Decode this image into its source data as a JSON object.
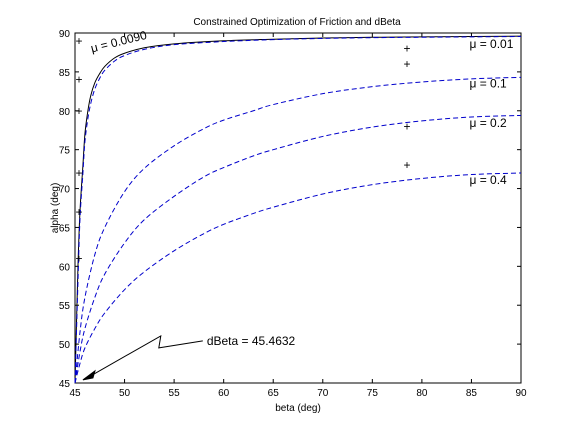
{
  "chart_data": {
    "type": "line",
    "title": "Constrained Optimization of Friction and dBeta",
    "xlabel": "beta (deg)",
    "ylabel": "alpha (deg)",
    "xlim": [
      45,
      90
    ],
    "ylim": [
      45,
      90
    ],
    "xticks": [
      45,
      50,
      55,
      60,
      65,
      70,
      75,
      80,
      85,
      90
    ],
    "yticks": [
      45,
      50,
      55,
      60,
      65,
      70,
      75,
      80,
      85,
      90
    ],
    "grid": false,
    "series": [
      {
        "name": "μ = 0.0090",
        "style": "solid",
        "color": "#000000",
        "x": [
          45.0,
          45.3,
          45.5,
          45.8,
          46.0,
          46.3,
          46.6,
          47.0,
          47.5,
          48.0,
          49.0,
          50.0,
          52.0,
          55.0,
          60.0,
          65.0,
          70.0,
          75.0,
          80.0,
          85.0,
          90.0
        ],
        "y": [
          45.0,
          60.0,
          67.0,
          73.0,
          77.0,
          80.0,
          82.0,
          83.6,
          84.8,
          85.7,
          86.8,
          87.4,
          88.1,
          88.6,
          89.0,
          89.2,
          89.35,
          89.45,
          89.5,
          89.55,
          89.6
        ]
      },
      {
        "name": "μ = 0.01",
        "style": "dashed",
        "color": "#0000cc",
        "x": [
          45.0,
          45.3,
          45.5,
          45.8,
          46.0,
          46.3,
          46.6,
          47.0,
          47.5,
          48.0,
          49.0,
          50.0,
          52.0,
          55.0,
          60.0,
          65.0,
          70.0,
          75.0,
          80.0,
          85.0,
          90.0
        ],
        "y": [
          45.0,
          58.0,
          66.0,
          72.0,
          76.0,
          79.0,
          81.0,
          82.8,
          84.2,
          85.2,
          86.4,
          87.1,
          87.9,
          88.5,
          88.9,
          89.15,
          89.3,
          89.4,
          89.45,
          89.5,
          89.55
        ]
      },
      {
        "name": "μ = 0.1",
        "style": "dashed",
        "color": "#0000cc",
        "x": [
          45.0,
          45.5,
          46.0,
          47.0,
          48.0,
          50.0,
          52.0,
          55.0,
          58.0,
          60.0,
          63.0,
          65.0,
          70.0,
          75.0,
          80.0,
          85.0,
          90.0
        ],
        "y": [
          45.0,
          51.5,
          56.0,
          61.5,
          65.0,
          69.6,
          72.6,
          75.5,
          77.7,
          78.8,
          80.0,
          80.8,
          82.2,
          83.1,
          83.7,
          84.1,
          84.3
        ]
      },
      {
        "name": "μ = 0.2",
        "style": "dashed",
        "color": "#0000cc",
        "x": [
          45.0,
          45.5,
          46.0,
          47.0,
          48.0,
          50.0,
          52.0,
          55.0,
          58.0,
          60.0,
          63.0,
          65.0,
          70.0,
          75.0,
          80.0,
          85.0,
          90.0
        ],
        "y": [
          45.0,
          49.0,
          52.0,
          56.0,
          59.0,
          63.0,
          66.0,
          69.0,
          71.5,
          72.7,
          74.2,
          75.0,
          76.7,
          77.9,
          78.7,
          79.2,
          79.4
        ]
      },
      {
        "name": "μ = 0.4",
        "style": "dashed",
        "color": "#0000cc",
        "x": [
          45.0,
          45.5,
          46.0,
          47.0,
          48.0,
          50.0,
          52.0,
          55.0,
          58.0,
          60.0,
          63.0,
          65.0,
          70.0,
          75.0,
          80.0,
          85.0,
          90.0
        ],
        "y": [
          45.0,
          47.5,
          49.5,
          52.0,
          54.0,
          57.0,
          59.3,
          62.0,
          64.2,
          65.4,
          66.8,
          67.6,
          69.3,
          70.5,
          71.3,
          71.8,
          72.0
        ]
      }
    ],
    "markers": {
      "symbol": "+",
      "points": [
        {
          "x": 45.4,
          "y": 89.0
        },
        {
          "x": 45.4,
          "y": 84.0
        },
        {
          "x": 45.4,
          "y": 80.0
        },
        {
          "x": 45.4,
          "y": 72.0
        },
        {
          "x": 45.4,
          "y": 67.0
        },
        {
          "x": 45.4,
          "y": 61.0
        },
        {
          "x": 78.5,
          "y": 88.0
        },
        {
          "x": 78.5,
          "y": 86.0
        },
        {
          "x": 78.5,
          "y": 78.0
        },
        {
          "x": 78.5,
          "y": 73.0
        }
      ]
    },
    "labels": [
      {
        "text": "μ = 0.0090",
        "x": 46.7,
        "y": 87.5,
        "rotate": -14
      },
      {
        "text": "μ = 0.01",
        "x": 84.8,
        "y": 88.1,
        "rotate": 0
      },
      {
        "text": "μ = 0.1",
        "x": 84.8,
        "y": 83.0,
        "rotate": 0
      },
      {
        "text": "μ = 0.2",
        "x": 84.8,
        "y": 77.9,
        "rotate": 0
      },
      {
        "text": "μ = 0.4",
        "x": 84.8,
        "y": 70.6,
        "rotate": 0
      }
    ],
    "annotation": {
      "text": "dBeta = 45.4632",
      "text_x": 58.3,
      "text_y": 49.9,
      "target_x": 45.8,
      "target_y": 45.4
    }
  }
}
